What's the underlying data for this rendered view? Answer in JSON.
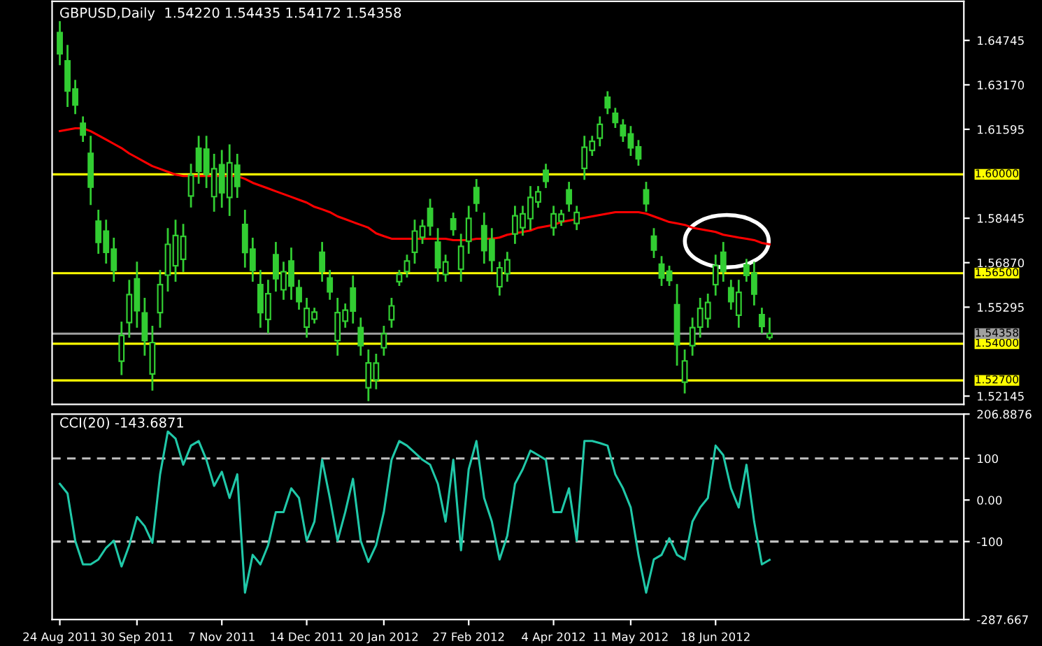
{
  "chart_data": [
    {
      "type": "candlestick",
      "title": "GBPUSD,Daily  1.54220 1.54435 1.54172 1.54358",
      "color": "#32cd32",
      "tick_labels": "y",
      "categories": [
        null,
        null,
        null,
        null,
        null,
        null,
        null,
        null,
        null,
        null,
        null,
        null,
        null,
        null,
        null,
        null,
        null,
        null,
        null,
        null,
        null,
        null,
        null,
        null,
        null,
        null,
        null,
        null,
        null,
        null,
        null,
        null,
        null,
        null,
        null,
        null,
        null,
        null,
        null,
        null,
        null,
        null,
        null,
        null,
        null,
        null,
        null,
        null,
        null,
        null,
        null,
        null,
        null,
        null,
        null,
        null,
        null,
        null,
        null,
        null,
        null,
        null,
        null,
        null,
        null,
        null,
        null,
        null,
        null,
        null,
        null,
        null,
        null,
        null,
        null,
        null,
        null,
        null,
        null,
        null,
        null,
        null,
        null,
        null,
        null,
        null,
        null,
        null,
        null,
        null,
        null,
        null,
        null
      ],
      "ohlc": [
        [
          1.6502,
          1.6539,
          1.639,
          1.6427
        ],
        [
          1.6402,
          1.6455,
          1.6242,
          1.6295
        ],
        [
          1.6302,
          1.6331,
          1.6217,
          1.6246
        ],
        [
          1.6181,
          1.6202,
          1.6118,
          1.6139
        ],
        [
          1.6074,
          1.6133,
          1.5895,
          1.5955
        ],
        [
          1.5834,
          1.5871,
          1.5722,
          1.5759
        ],
        [
          1.5799,
          1.5836,
          1.5687,
          1.5724
        ],
        [
          1.5735,
          1.5772,
          1.5623,
          1.566
        ],
        [
          1.5338,
          1.5475,
          1.5292,
          1.5429
        ],
        [
          1.5475,
          1.5623,
          1.5425,
          1.5574
        ],
        [
          1.563,
          1.5687,
          1.546,
          1.5517
        ],
        [
          1.5509,
          1.5559,
          1.5361,
          1.5411
        ],
        [
          1.5293,
          1.546,
          1.5237,
          1.5404
        ],
        [
          1.551,
          1.5658,
          1.546,
          1.5609
        ],
        [
          1.5643,
          1.5806,
          1.5588,
          1.5752
        ],
        [
          1.5676,
          1.5836,
          1.5623,
          1.5783
        ],
        [
          1.5699,
          1.5821,
          1.5658,
          1.578
        ],
        [
          1.5923,
          1.6034,
          1.5886,
          1.5997
        ],
        [
          1.6092,
          1.6133,
          1.597,
          1.6011
        ],
        [
          1.6089,
          1.6133,
          1.5955,
          1.6
        ],
        [
          1.5921,
          1.6069,
          1.5871,
          1.602
        ],
        [
          1.6034,
          1.6083,
          1.5885,
          1.5935
        ],
        [
          1.5918,
          1.6103,
          1.5856,
          1.6041
        ],
        [
          1.6032,
          1.6069,
          1.592,
          1.5957
        ],
        [
          1.5822,
          1.5871,
          1.5673,
          1.5723
        ],
        [
          1.5735,
          1.5772,
          1.5623,
          1.566
        ],
        [
          1.5609,
          1.5658,
          1.546,
          1.551
        ],
        [
          1.5486,
          1.5623,
          1.544,
          1.5577
        ],
        [
          1.5715,
          1.5757,
          1.5588,
          1.563
        ],
        [
          1.5591,
          1.5687,
          1.5559,
          1.5655
        ],
        [
          1.5693,
          1.5737,
          1.5559,
          1.5604
        ],
        [
          1.5598,
          1.5623,
          1.5524,
          1.5549
        ],
        [
          1.5459,
          1.5559,
          1.5425,
          1.5525
        ],
        [
          1.5487,
          1.5524,
          1.5475,
          1.5512
        ],
        [
          1.5724,
          1.5757,
          1.5623,
          1.5657
        ],
        [
          1.5633,
          1.5658,
          1.5559,
          1.5584
        ],
        [
          1.5411,
          1.5559,
          1.5361,
          1.551
        ],
        [
          1.548,
          1.5539,
          1.546,
          1.5519
        ],
        [
          1.5597,
          1.5638,
          1.5475,
          1.5516
        ],
        [
          1.5457,
          1.5489,
          1.5361,
          1.5393
        ],
        [
          1.5244,
          1.5376,
          1.52,
          1.5332
        ],
        [
          1.5272,
          1.5361,
          1.5242,
          1.5331
        ],
        [
          1.5386,
          1.546,
          1.5361,
          1.5435
        ],
        [
          1.5485,
          1.5559,
          1.546,
          1.5534
        ],
        [
          1.562,
          1.5658,
          1.5608,
          1.5646
        ],
        [
          1.5656,
          1.5712,
          1.5638,
          1.5693
        ],
        [
          1.5724,
          1.5836,
          1.5687,
          1.5799
        ],
        [
          1.5777,
          1.5836,
          1.5757,
          1.5816
        ],
        [
          1.5879,
          1.591,
          1.5786,
          1.5817
        ],
        [
          1.576,
          1.5806,
          1.5623,
          1.5669
        ],
        [
          1.5645,
          1.5712,
          1.5623,
          1.569
        ],
        [
          1.5842,
          1.5861,
          1.5786,
          1.5805
        ],
        [
          1.5664,
          1.5786,
          1.5623,
          1.5745
        ],
        [
          1.5763,
          1.5885,
          1.5722,
          1.5844
        ],
        [
          1.5953,
          1.598,
          1.5871,
          1.5898
        ],
        [
          1.5818,
          1.5861,
          1.5687,
          1.573
        ],
        [
          1.5769,
          1.5806,
          1.5658,
          1.5695
        ],
        [
          1.5602,
          1.5687,
          1.5574,
          1.5669
        ],
        [
          1.5648,
          1.5722,
          1.5623,
          1.5697
        ],
        [
          1.5789,
          1.5885,
          1.5757,
          1.5853
        ],
        [
          1.5811,
          1.5885,
          1.5786,
          1.586
        ],
        [
          1.5843,
          1.5955,
          1.5806,
          1.5918
        ],
        [
          1.5902,
          1.5955,
          1.5885,
          1.5938
        ],
        [
          1.6014,
          1.6034,
          1.5955,
          1.5975
        ],
        [
          1.5811,
          1.5885,
          1.5786,
          1.586
        ],
        [
          1.5834,
          1.5871,
          1.5821,
          1.5859
        ],
        [
          1.5945,
          1.597,
          1.5871,
          1.5896
        ],
        [
          1.5826,
          1.5885,
          1.5806,
          1.5865
        ],
        [
          1.6021,
          1.6133,
          1.5984,
          1.6096
        ],
        [
          1.6085,
          1.6133,
          1.6069,
          1.6117
        ],
        [
          1.6128,
          1.6202,
          1.6103,
          1.6177
        ],
        [
          1.6273,
          1.6291,
          1.6217,
          1.6236
        ],
        [
          1.6216,
          1.6232,
          1.6168,
          1.6184
        ],
        [
          1.6174,
          1.6192,
          1.6118,
          1.6137
        ],
        [
          1.6143,
          1.6168,
          1.6069,
          1.6094
        ],
        [
          1.6097,
          1.6118,
          1.6034,
          1.6055
        ],
        [
          1.5945,
          1.597,
          1.5871,
          1.5896
        ],
        [
          1.5781,
          1.5806,
          1.5707,
          1.5732
        ],
        [
          1.5682,
          1.5707,
          1.5608,
          1.5633
        ],
        [
          1.5657,
          1.5673,
          1.5608,
          1.5624
        ],
        [
          1.5538,
          1.5608,
          1.5326,
          1.5396
        ],
        [
          1.5264,
          1.5376,
          1.5227,
          1.5339
        ],
        [
          1.5393,
          1.5489,
          1.5361,
          1.5457
        ],
        [
          1.5459,
          1.5559,
          1.5425,
          1.5525
        ],
        [
          1.5489,
          1.5574,
          1.546,
          1.5546
        ],
        [
          1.5609,
          1.5712,
          1.5574,
          1.5677
        ],
        [
          1.5724,
          1.5757,
          1.5623,
          1.5657
        ],
        [
          1.5598,
          1.5623,
          1.5524,
          1.5549
        ],
        [
          1.5501,
          1.5623,
          1.546,
          1.5582
        ],
        [
          1.5679,
          1.5697,
          1.5623,
          1.5642
        ],
        [
          1.565,
          1.5687,
          1.5539,
          1.5576
        ],
        [
          1.5503,
          1.5524,
          1.544,
          1.5461
        ],
        [
          1.5422,
          1.5489,
          1.5417,
          1.5436
        ]
      ],
      "series": [
        {
          "type": "line",
          "color": "#ff0000",
          "values": [
            1.6153,
            1.6158,
            1.6163,
            1.6163,
            1.6153,
            1.6138,
            1.6123,
            1.6108,
            1.6093,
            1.6074,
            1.6059,
            1.6044,
            1.6029,
            1.6019,
            1.6009,
            1.5999,
            1.5994,
            1.5994,
            1.5994,
            1.5994,
            1.5994,
            1.5994,
            1.5994,
            1.5994,
            1.5984,
            1.597,
            1.596,
            1.595,
            1.594,
            1.593,
            1.592,
            1.591,
            1.59,
            1.5885,
            1.5876,
            1.5866,
            1.5851,
            1.5841,
            1.5831,
            1.5821,
            1.5811,
            1.5791,
            1.5781,
            1.5772,
            1.5772,
            1.5772,
            1.5772,
            1.5772,
            1.5772,
            1.5772,
            1.5772,
            1.5767,
            1.5767,
            1.5767,
            1.5772,
            1.5772,
            1.5772,
            1.5776,
            1.5786,
            1.5791,
            1.5796,
            1.5801,
            1.5811,
            1.5816,
            1.5821,
            1.5831,
            1.5836,
            1.5841,
            1.5846,
            1.5851,
            1.5856,
            1.5861,
            1.5866,
            1.5866,
            1.5866,
            1.5866,
            1.5861,
            1.5851,
            1.5841,
            1.5831,
            1.5826,
            1.5821,
            1.5811,
            1.5806,
            1.5801,
            1.5796,
            1.5786,
            1.5781,
            1.5776,
            1.5772,
            1.5767,
            1.5757,
            1.5752
          ]
        }
      ],
      "ylim": [
        1.5185,
        1.6613
      ],
      "yticks": [
        {
          "value": 1.64745,
          "label": "1.64745"
        },
        {
          "value": 1.6317,
          "label": "1.63170"
        },
        {
          "value": 1.61595,
          "label": "1.61595"
        },
        {
          "value": 1.58445,
          "label": "1.58445"
        },
        {
          "value": 1.5687,
          "label": "1.56870"
        },
        {
          "value": 1.55295,
          "label": "1.55295"
        },
        {
          "value": 1.52145,
          "label": "1.52145"
        }
      ],
      "ref_lines": [
        {
          "axis": "y",
          "value": 1.6,
          "label": "1.60000",
          "color": "#ffff00"
        },
        {
          "axis": "y",
          "value": 1.565,
          "label": "1.56500",
          "color": "#ffff00"
        },
        {
          "axis": "y",
          "value": 1.54,
          "label": "1.54000",
          "color": "#ffff00"
        },
        {
          "axis": "y",
          "value": 1.527,
          "label": "1.52700",
          "color": "#ffff00"
        },
        {
          "axis": "y",
          "value": 1.54358,
          "label": "1.54358",
          "color": "#a0a0a0"
        }
      ]
    },
    {
      "type": "line",
      "title": "CCI(20) -143.6871",
      "categories": [
        "24 Aug 2011",
        null,
        null,
        null,
        null,
        null,
        null,
        null,
        null,
        null,
        "30 Sep 2011",
        null,
        null,
        null,
        null,
        null,
        null,
        null,
        null,
        null,
        null,
        "7 Nov 2011",
        null,
        null,
        null,
        null,
        null,
        null,
        null,
        null,
        null,
        null,
        "14 Dec 2011",
        null,
        null,
        null,
        null,
        null,
        null,
        null,
        null,
        null,
        "20 Jan 2012",
        null,
        null,
        null,
        null,
        null,
        null,
        null,
        null,
        null,
        null,
        "27 Feb 2012",
        null,
        null,
        null,
        null,
        null,
        null,
        null,
        null,
        null,
        null,
        "4 Apr 2012",
        null,
        null,
        null,
        null,
        null,
        null,
        null,
        null,
        null,
        "11 May 2012",
        null,
        null,
        null,
        null,
        null,
        null,
        null,
        null,
        null,
        null,
        "18 Jun 2012",
        null,
        null,
        null,
        null,
        null,
        null,
        null
      ],
      "series": [
        {
          "color": "#20c8a8",
          "values": [
            39,
            16,
            -98,
            -155,
            -155,
            -143,
            -115,
            -98,
            -160,
            -109,
            -41,
            -63,
            -103,
            62,
            165,
            148,
            85,
            131,
            142,
            97,
            34,
            68,
            5,
            62,
            -223,
            -132,
            -155,
            -109,
            -29,
            -29,
            28,
            5,
            -98,
            -52,
            97,
            5,
            -98,
            -29,
            51,
            -98,
            -149,
            -109,
            -29,
            97,
            142,
            131,
            114,
            97,
            85,
            39,
            -52,
            97,
            -121,
            74,
            142,
            5,
            -52,
            -143,
            -86,
            39,
            74,
            119,
            108,
            97,
            -29,
            -29,
            28,
            -98,
            142,
            142,
            137,
            131,
            62,
            28,
            -18,
            -132,
            -223,
            -143,
            -132,
            -92,
            -132,
            -143,
            -52,
            -18,
            5,
            131,
            108,
            28,
            -18,
            85,
            -52,
            -155,
            -144
          ]
        }
      ],
      "ylim": [
        -287.667,
        206.8876
      ],
      "yticks": [
        {
          "value": 206.8876,
          "label": "206.8876"
        },
        100,
        {
          "value": 0,
          "label": "0.00"
        },
        -100,
        {
          "value": -287.667,
          "label": "-287.667"
        }
      ],
      "ref_lines": [
        {
          "axis": "y",
          "value": 100,
          "color": "#c0c0c0",
          "line_style": "dashed"
        },
        {
          "axis": "y",
          "value": -100,
          "color": "#c0c0c0",
          "line_style": "dashed"
        }
      ]
    }
  ]
}
